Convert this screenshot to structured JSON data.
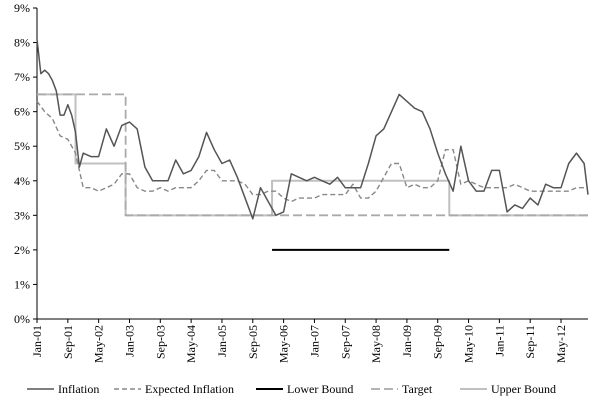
{
  "chart_data": {
    "type": "line",
    "title": "",
    "xlabel": "",
    "ylabel": "",
    "ylim": [
      0,
      9
    ],
    "y_ticks": [
      "0%",
      "1%",
      "2%",
      "3%",
      "4%",
      "5%",
      "6%",
      "7%",
      "8%",
      "9%"
    ],
    "x_ticks": [
      "Jan-01",
      "Sep-01",
      "May-02",
      "Jan-03",
      "Sep-03",
      "May-04",
      "Jan-05",
      "Sep-05",
      "May-06",
      "Jan-07",
      "Sep-07",
      "May-08",
      "Jan-09",
      "Sep-09",
      "May-10",
      "Jan-11",
      "Sep-11",
      "May-12"
    ],
    "x_range": [
      "Jan-01",
      "Dec-12"
    ],
    "grid": false,
    "legend_position": "bottom",
    "series": [
      {
        "name": "Inflation",
        "style": "solid",
        "color": "#555555",
        "x": [
          "Jan-01",
          "Feb-01",
          "Mar-01",
          "Apr-01",
          "May-01",
          "Jun-01",
          "Jul-01",
          "Aug-01",
          "Sep-01",
          "Oct-01",
          "Nov-01",
          "Dec-01",
          "Jan-02",
          "Mar-02",
          "May-02",
          "Jul-02",
          "Sep-02",
          "Nov-02",
          "Jan-03",
          "Mar-03",
          "May-03",
          "Jul-03",
          "Sep-03",
          "Nov-03",
          "Jan-04",
          "Mar-04",
          "May-04",
          "Jul-04",
          "Sep-04",
          "Nov-04",
          "Jan-05",
          "Mar-05",
          "May-05",
          "Jul-05",
          "Sep-05",
          "Nov-05",
          "Jan-06",
          "Mar-06",
          "May-06",
          "Jul-06",
          "Sep-06",
          "Nov-06",
          "Jan-07",
          "Mar-07",
          "May-07",
          "Jul-07",
          "Sep-07",
          "Nov-07",
          "Jan-08",
          "Mar-08",
          "May-08",
          "Jul-08",
          "Sep-08",
          "Nov-08",
          "Jan-09",
          "Mar-09",
          "May-09",
          "Jul-09",
          "Sep-09",
          "Nov-09",
          "Jan-10",
          "Mar-10",
          "May-10",
          "Jul-10",
          "Sep-10",
          "Nov-10",
          "Jan-11",
          "Mar-11",
          "May-11",
          "Jul-11",
          "Sep-11",
          "Nov-11",
          "Jan-12",
          "Mar-12",
          "May-12",
          "Jul-12",
          "Sep-12",
          "Nov-12",
          "Dec-12"
        ],
        "values": [
          8.1,
          7.1,
          7.2,
          7.1,
          6.9,
          6.6,
          5.9,
          5.9,
          6.2,
          5.9,
          5.4,
          4.4,
          4.8,
          4.7,
          4.7,
          5.5,
          5.0,
          5.6,
          5.7,
          5.5,
          4.4,
          4.0,
          4.0,
          4.0,
          4.6,
          4.2,
          4.3,
          4.7,
          5.4,
          4.9,
          4.5,
          4.6,
          4.1,
          3.5,
          2.9,
          3.8,
          3.4,
          3.0,
          3.1,
          4.2,
          4.1,
          4.0,
          4.1,
          4.0,
          3.9,
          4.1,
          3.8,
          3.8,
          3.8,
          4.5,
          5.3,
          5.5,
          6.0,
          6.5,
          6.3,
          6.1,
          6.0,
          5.5,
          4.8,
          4.2,
          3.7,
          5.0,
          4.0,
          3.7,
          3.7,
          4.3,
          4.3,
          3.1,
          3.3,
          3.2,
          3.5,
          3.3,
          3.9,
          3.8,
          3.8,
          4.5,
          4.8,
          4.5,
          3.6
        ]
      },
      {
        "name": "Expected Inflation",
        "style": "dashed",
        "color": "#888888",
        "x": [
          "Jan-01",
          "Mar-01",
          "May-01",
          "Jul-01",
          "Sep-01",
          "Nov-01",
          "Jan-02",
          "Mar-02",
          "May-02",
          "Jul-02",
          "Sep-02",
          "Nov-02",
          "Jan-03",
          "Mar-03",
          "May-03",
          "Jul-03",
          "Sep-03",
          "Nov-03",
          "Jan-04",
          "Mar-04",
          "May-04",
          "Jul-04",
          "Sep-04",
          "Nov-04",
          "Jan-05",
          "Mar-05",
          "May-05",
          "Jul-05",
          "Sep-05",
          "Nov-05",
          "Jan-06",
          "Mar-06",
          "May-06",
          "Jul-06",
          "Sep-06",
          "Nov-06",
          "Jan-07",
          "Mar-07",
          "May-07",
          "Jul-07",
          "Sep-07",
          "Nov-07",
          "Jan-08",
          "Mar-08",
          "May-08",
          "Jul-08",
          "Sep-08",
          "Nov-08",
          "Jan-09",
          "Mar-09",
          "May-09",
          "Jul-09",
          "Sep-09",
          "Nov-09",
          "Jan-10",
          "Mar-10",
          "May-10",
          "Jul-10",
          "Sep-10",
          "Nov-10",
          "Jan-11",
          "Mar-11",
          "May-11",
          "Jul-11",
          "Sep-11",
          "Nov-11",
          "Jan-12",
          "Mar-12",
          "May-12",
          "Jul-12",
          "Sep-12",
          "Nov-12",
          "Dec-12"
        ],
        "values": [
          6.3,
          6.0,
          5.8,
          5.3,
          5.2,
          4.8,
          3.8,
          3.8,
          3.7,
          3.8,
          3.9,
          4.2,
          4.2,
          3.8,
          3.7,
          3.7,
          3.8,
          3.7,
          3.8,
          3.8,
          3.8,
          4.0,
          4.3,
          4.3,
          4.0,
          4.0,
          4.0,
          3.9,
          3.6,
          3.6,
          3.7,
          3.7,
          3.5,
          3.4,
          3.5,
          3.5,
          3.5,
          3.6,
          3.6,
          3.6,
          3.6,
          3.9,
          3.5,
          3.5,
          3.7,
          4.1,
          4.5,
          4.5,
          3.8,
          3.9,
          3.8,
          3.8,
          4.0,
          4.9,
          4.9,
          3.9,
          4.0,
          3.9,
          3.8,
          3.8,
          3.8,
          3.8,
          3.9,
          3.8,
          3.7,
          3.7,
          3.7,
          3.7,
          3.7,
          3.7,
          3.8,
          3.8,
          3.8
        ]
      },
      {
        "name": "Lower Bound",
        "style": "solid",
        "color": "#000000",
        "x": [
          "Feb-06",
          "Dec-09"
        ],
        "values": [
          2.0,
          2.0
        ]
      },
      {
        "name": "Target",
        "style": "dashed",
        "color": "#aaaaaa",
        "x": [
          "Jan-01",
          "Dec-02",
          "Dec-02",
          "Dec-12"
        ],
        "values": [
          6.5,
          6.5,
          3.0,
          3.0
        ]
      },
      {
        "name": "Upper Bound",
        "style": "solid",
        "color": "#c0c0c0",
        "x": [
          "Jan-01",
          "Nov-01",
          "Nov-01",
          "Dec-02",
          "Dec-02",
          "Feb-06",
          "Feb-06",
          "Dec-09",
          "Dec-09",
          "Dec-12"
        ],
        "values": [
          6.5,
          6.5,
          4.5,
          4.5,
          3.0,
          3.0,
          4.0,
          4.0,
          3.0,
          3.0
        ]
      }
    ]
  }
}
